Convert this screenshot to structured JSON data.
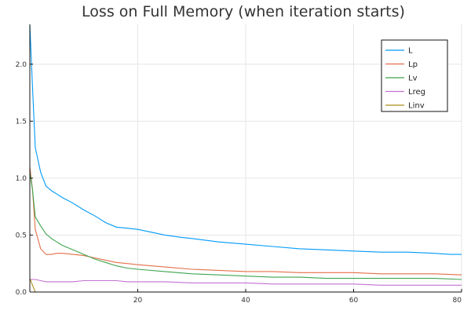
{
  "chart_data": {
    "type": "line",
    "title": "Loss on Full Memory (when iteration starts)",
    "xlabel": "",
    "ylabel": "",
    "xlim": [
      0,
      80
    ],
    "ylim": [
      0,
      2.35
    ],
    "xticks": [
      20,
      40,
      60,
      80
    ],
    "xtick_labels": [
      "20",
      "40",
      "60",
      "80"
    ],
    "yticks": [
      0.0,
      0.5,
      1.0,
      1.5,
      2.0
    ],
    "ytick_labels": [
      "0.0",
      "0.5",
      "1.0",
      "1.5",
      "2.0"
    ],
    "grid": true,
    "legend_position": "top-right",
    "series": [
      {
        "name": "L",
        "color": "#009AFA",
        "x": [
          0,
          0.5,
          1,
          2,
          3,
          4,
          5,
          6,
          8,
          10,
          12,
          14,
          16,
          18,
          20,
          22,
          25,
          28,
          30,
          35,
          40,
          45,
          50,
          55,
          60,
          65,
          70,
          75,
          78,
          80
        ],
        "y": [
          2.35,
          1.8,
          1.27,
          1.05,
          0.93,
          0.89,
          0.86,
          0.83,
          0.78,
          0.72,
          0.67,
          0.61,
          0.57,
          0.56,
          0.55,
          0.53,
          0.5,
          0.48,
          0.47,
          0.44,
          0.42,
          0.4,
          0.38,
          0.37,
          0.36,
          0.35,
          0.35,
          0.34,
          0.33,
          0.33
        ]
      },
      {
        "name": "Lp",
        "color": "#E36F47",
        "x": [
          0,
          0.5,
          1,
          2,
          3,
          4,
          5,
          6,
          8,
          10,
          12,
          14,
          16,
          18,
          20,
          25,
          30,
          35,
          40,
          45,
          50,
          55,
          60,
          65,
          70,
          75,
          80
        ],
        "y": [
          1.1,
          0.9,
          0.55,
          0.38,
          0.33,
          0.33,
          0.34,
          0.34,
          0.33,
          0.32,
          0.3,
          0.28,
          0.26,
          0.25,
          0.24,
          0.22,
          0.2,
          0.19,
          0.18,
          0.18,
          0.17,
          0.17,
          0.17,
          0.16,
          0.16,
          0.16,
          0.15
        ]
      },
      {
        "name": "Lv",
        "color": "#3EA44E",
        "x": [
          0,
          0.5,
          1,
          2,
          3,
          4,
          5,
          6,
          8,
          10,
          12,
          14,
          16,
          18,
          20,
          25,
          30,
          35,
          40,
          45,
          50,
          55,
          60,
          65,
          70,
          75,
          80
        ],
        "y": [
          1.05,
          0.9,
          0.66,
          0.58,
          0.51,
          0.47,
          0.44,
          0.41,
          0.37,
          0.33,
          0.29,
          0.26,
          0.23,
          0.21,
          0.2,
          0.18,
          0.16,
          0.15,
          0.14,
          0.13,
          0.13,
          0.12,
          0.12,
          0.12,
          0.12,
          0.12,
          0.11
        ]
      },
      {
        "name": "Lreg",
        "color": "#C271D2",
        "x": [
          0,
          1,
          2,
          3,
          4,
          6,
          8,
          10,
          12,
          14,
          16,
          18,
          20,
          25,
          30,
          35,
          40,
          45,
          50,
          55,
          60,
          65,
          70,
          75,
          80
        ],
        "y": [
          0.11,
          0.11,
          0.1,
          0.09,
          0.09,
          0.09,
          0.09,
          0.1,
          0.1,
          0.1,
          0.1,
          0.09,
          0.09,
          0.09,
          0.08,
          0.08,
          0.08,
          0.07,
          0.07,
          0.07,
          0.07,
          0.06,
          0.06,
          0.06,
          0.06
        ]
      },
      {
        "name": "Linv",
        "color": "#AC8D18",
        "x": [
          0,
          0.5,
          1,
          2,
          5,
          10,
          20,
          40,
          60,
          80
        ],
        "y": [
          0.12,
          0.06,
          0.0,
          0.0,
          0.0,
          0.0,
          0.0,
          0.0,
          0.0,
          0.0
        ]
      }
    ]
  }
}
